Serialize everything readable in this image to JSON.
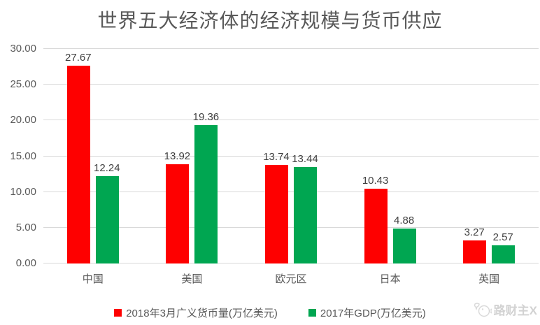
{
  "watermark": {
    "text": "路财主X"
  },
  "chart_data": {
    "type": "bar",
    "title": "世界五大经济体的经济规模与货币供应",
    "categories": [
      "中国",
      "美国",
      "欧元区",
      "日本",
      "英国"
    ],
    "series": [
      {
        "name": "2018年3月广义货币量(万亿美元)",
        "color": "#fe0000",
        "values": [
          27.67,
          13.92,
          13.74,
          10.43,
          3.27
        ]
      },
      {
        "name": "2017年GDP(万亿美元)",
        "color": "#00a651",
        "values": [
          12.24,
          19.36,
          13.44,
          4.88,
          2.57
        ]
      }
    ],
    "ylabel": "",
    "xlabel": "",
    "ylim": [
      0,
      30
    ],
    "yticks": [
      0,
      5,
      10,
      15,
      20,
      25,
      30
    ],
    "ytick_labels": [
      "0.00",
      "5.00",
      "10.00",
      "15.00",
      "20.00",
      "25.00",
      "30.00"
    ],
    "grid": true,
    "legend_position": "bottom",
    "gridline_color": "#d9d9d9",
    "label_color": "#404040",
    "axis_text_color": "#595959"
  }
}
